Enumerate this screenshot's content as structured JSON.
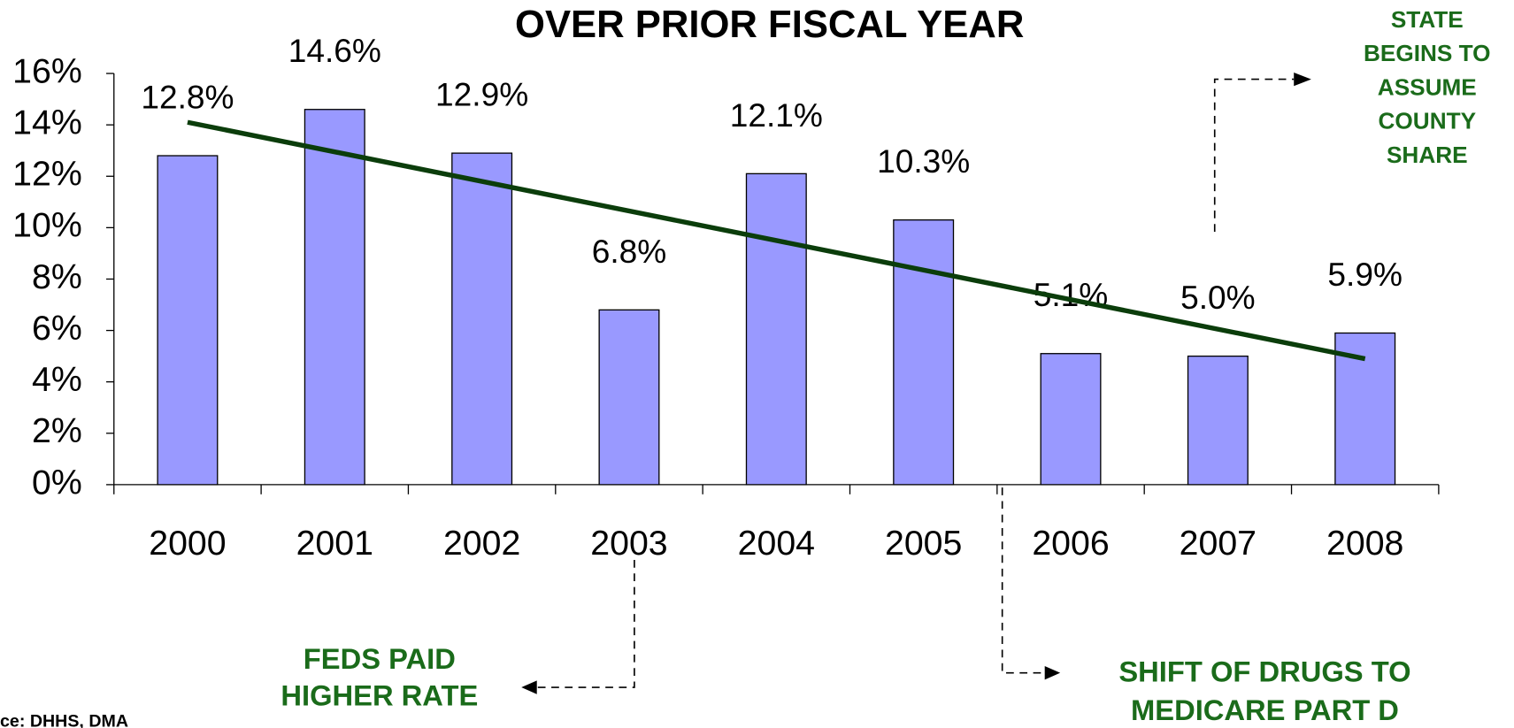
{
  "chart_data": {
    "type": "bar",
    "title": "OVER PRIOR FISCAL YEAR",
    "categories": [
      "2000",
      "2001",
      "2002",
      "2003",
      "2004",
      "2005",
      "2006",
      "2007",
      "2008"
    ],
    "values": [
      12.8,
      14.6,
      12.9,
      6.8,
      12.1,
      10.3,
      5.1,
      5.0,
      5.9
    ],
    "value_labels": [
      "12.8%",
      "14.6%",
      "12.9%",
      "6.8%",
      "12.1%",
      "10.3%",
      "5.1%",
      "5.0%",
      "5.9%"
    ],
    "color": "#9999ff",
    "ylim": [
      0,
      16
    ],
    "yticks": [
      {
        "value": 0,
        "label": "0%"
      },
      {
        "value": 2,
        "label": "2%"
      },
      {
        "value": 4,
        "label": "4%"
      },
      {
        "value": 6,
        "label": "6%"
      },
      {
        "value": 8,
        "label": "8%"
      },
      {
        "value": 10,
        "label": "10%"
      },
      {
        "value": 12,
        "label": "12%"
      },
      {
        "value": 14,
        "label": "14%"
      },
      {
        "value": 16,
        "label": "16%"
      }
    ],
    "trendline": {
      "color": "#0b3d0b",
      "start": 14.1,
      "end": 4.9
    },
    "annotations": {
      "state": [
        "STATE",
        "BEGINS TO",
        "ASSUME",
        "COUNTY",
        "SHARE"
      ],
      "feds": [
        "FEDS PAID",
        "HIGHER RATE"
      ],
      "shift": [
        "SHIFT OF DRUGS TO",
        "MEDICARE PART D"
      ]
    },
    "source": "ce: DHHS, DMA"
  }
}
